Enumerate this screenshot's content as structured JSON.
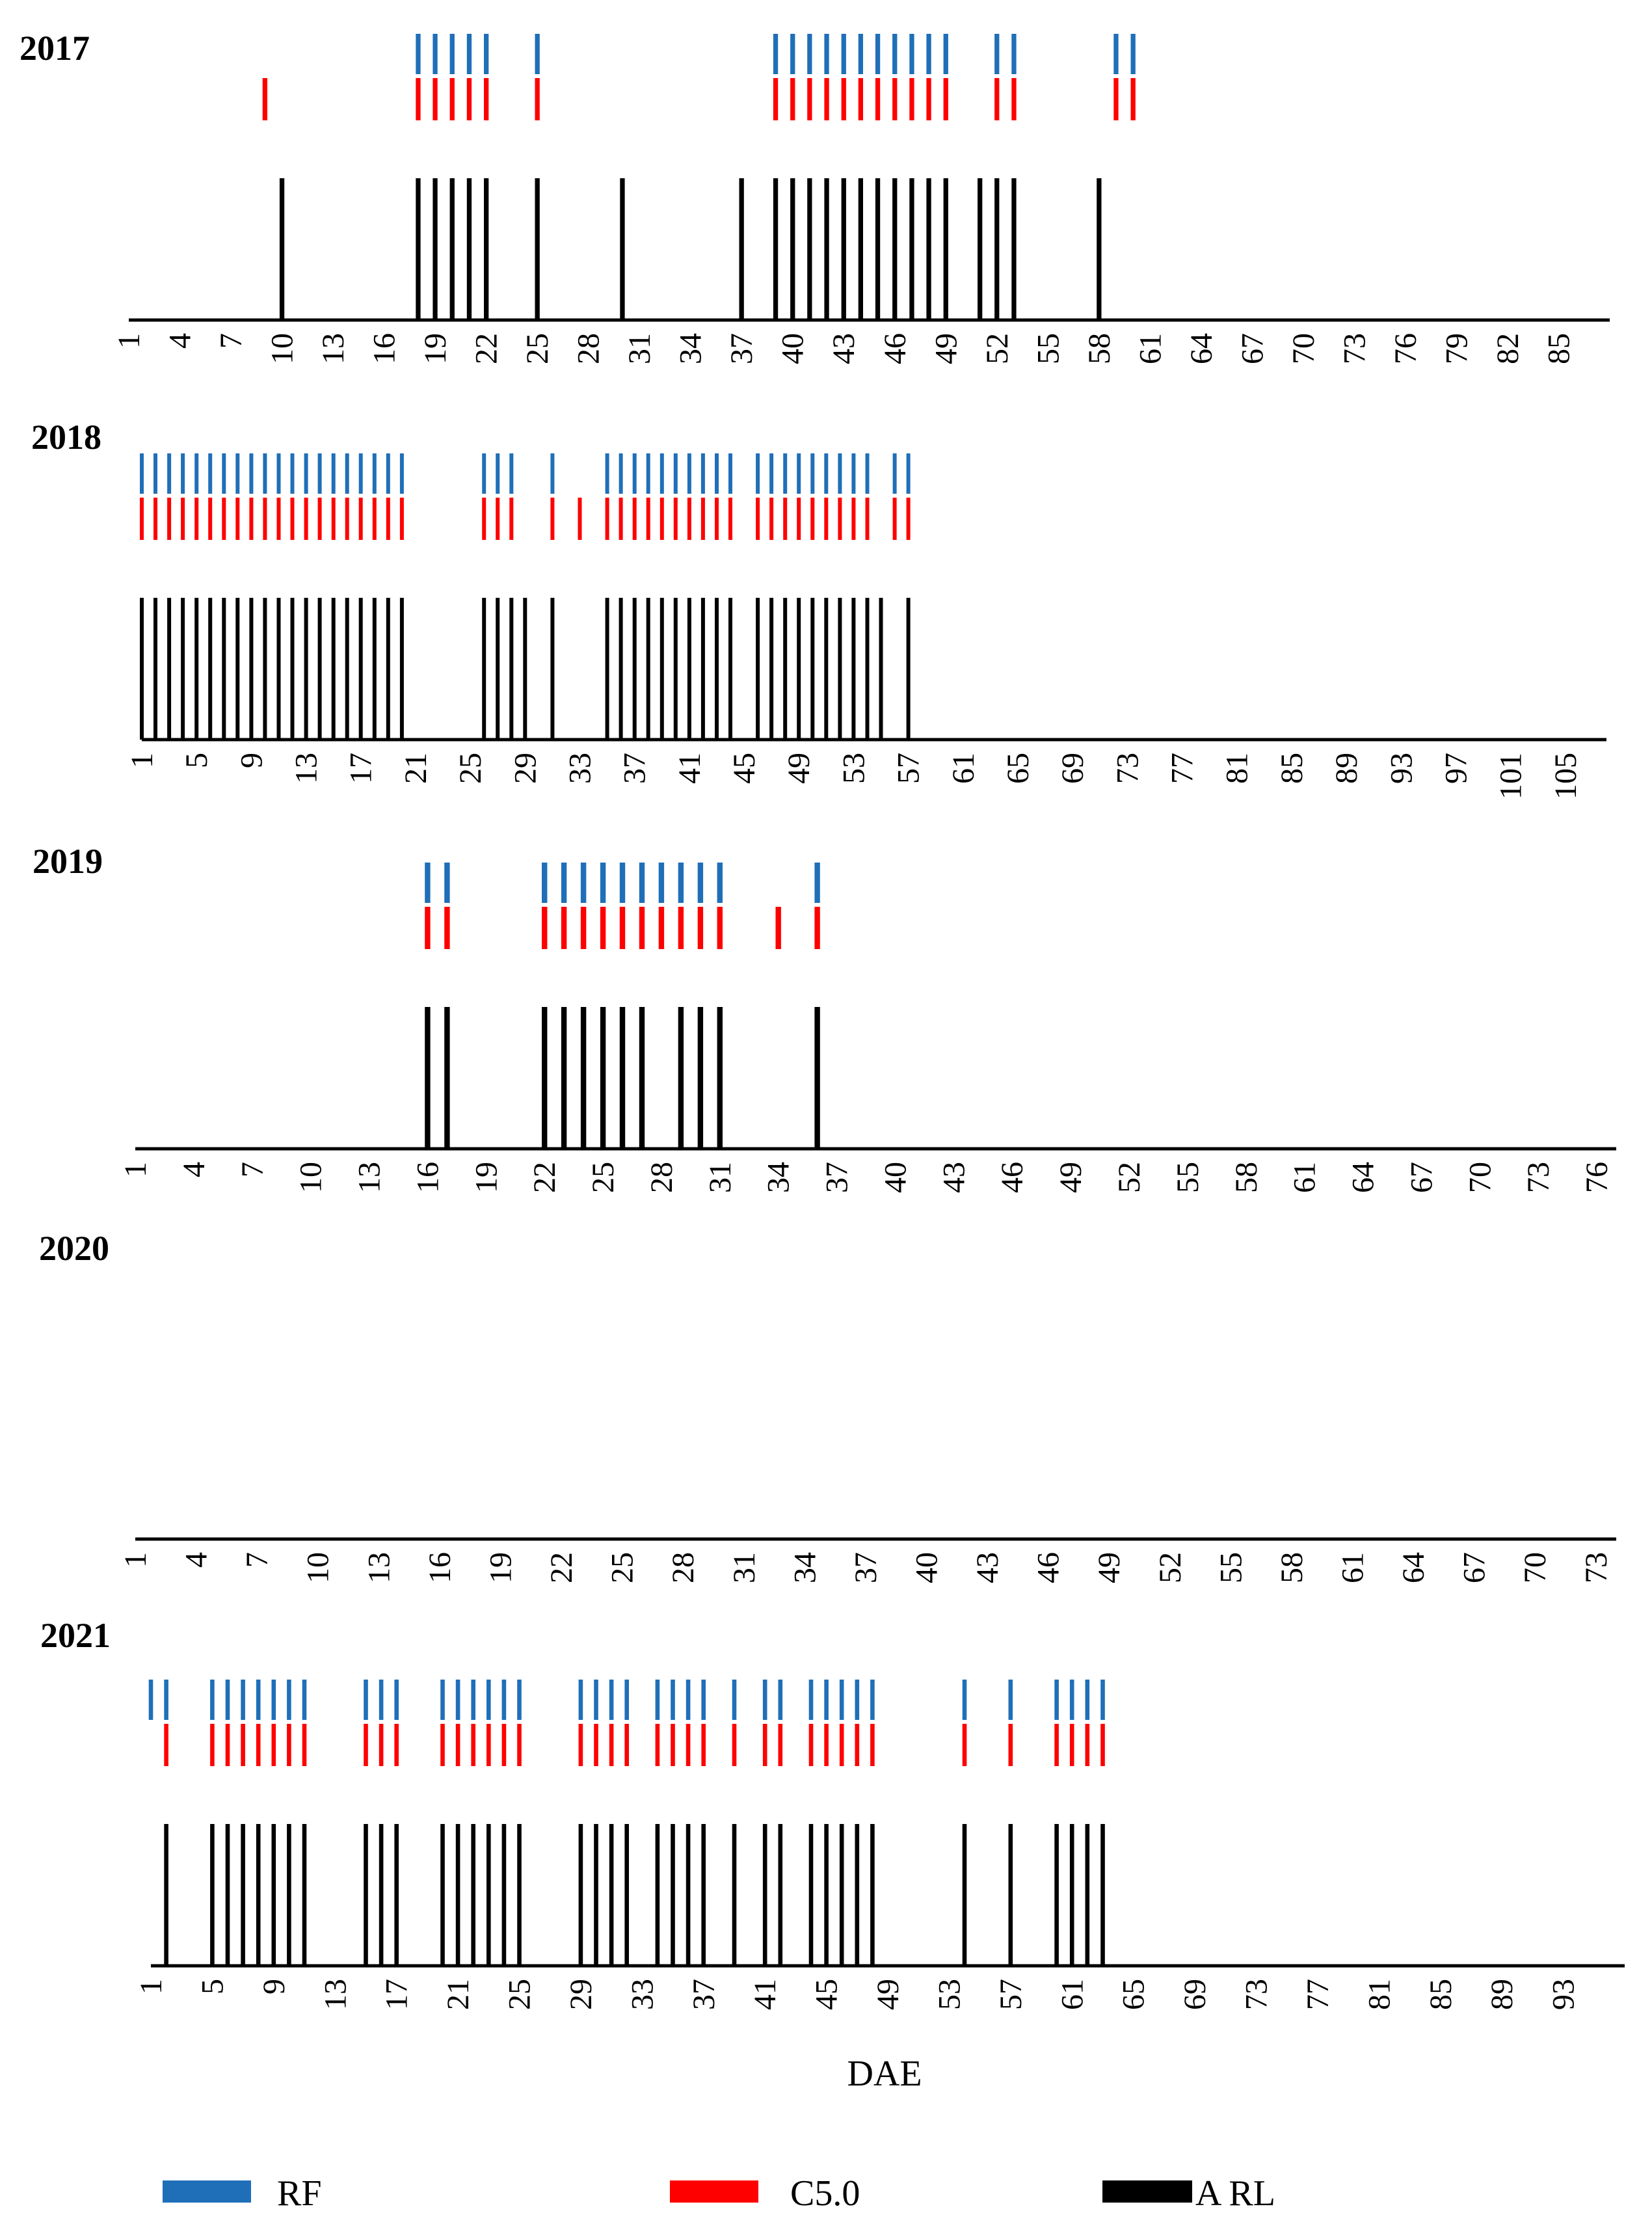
{
  "colors": {
    "rf": "#1F6FB8",
    "c50": "#FF0000",
    "arl": "#000000",
    "axis": "#000000"
  },
  "legend": [
    {
      "key": "rf",
      "label": "RF"
    },
    {
      "key": "c50",
      "label": "C5.0"
    },
    {
      "key": "arl",
      "label": "A RL"
    }
  ],
  "chart_data": [
    {
      "type": "event-raster",
      "title": "2017",
      "xlim": [
        1,
        88
      ],
      "tick_labels": [
        1,
        4,
        7,
        10,
        13,
        16,
        19,
        22,
        25,
        28,
        31,
        34,
        37,
        40,
        43,
        46,
        49,
        52,
        55,
        58,
        61,
        64,
        67,
        70,
        73,
        76,
        79,
        82,
        85
      ],
      "series": [
        {
          "name": "RF",
          "events": [
            18,
            19,
            20,
            21,
            22,
            25,
            39,
            40,
            41,
            42,
            43,
            44,
            45,
            46,
            47,
            48,
            49,
            52,
            53,
            59,
            60
          ]
        },
        {
          "name": "C5.0",
          "events": [
            9,
            18,
            19,
            20,
            21,
            22,
            25,
            39,
            40,
            41,
            42,
            43,
            44,
            45,
            46,
            47,
            48,
            49,
            52,
            53,
            59,
            60
          ]
        },
        {
          "name": "ARL",
          "events": [
            10,
            18,
            19,
            20,
            21,
            22,
            25,
            30,
            37,
            39,
            40,
            41,
            42,
            43,
            44,
            45,
            46,
            47,
            48,
            49,
            51,
            52,
            53,
            58
          ]
        }
      ]
    },
    {
      "type": "event-raster",
      "title": "2018",
      "xlim": [
        1,
        108
      ],
      "tick_labels": [
        1,
        5,
        9,
        13,
        17,
        21,
        25,
        29,
        33,
        37,
        41,
        45,
        49,
        53,
        57,
        61,
        65,
        69,
        73,
        77,
        81,
        85,
        89,
        93,
        97,
        101,
        105
      ],
      "series": [
        {
          "name": "RF",
          "events": [
            1,
            2,
            3,
            4,
            5,
            6,
            7,
            8,
            9,
            10,
            11,
            12,
            13,
            14,
            15,
            16,
            17,
            18,
            19,
            20,
            26,
            27,
            28,
            31,
            35,
            36,
            37,
            38,
            39,
            40,
            41,
            42,
            43,
            44,
            46,
            47,
            48,
            49,
            50,
            51,
            52,
            53,
            54,
            56,
            57
          ]
        },
        {
          "name": "C5.0",
          "events": [
            1,
            2,
            3,
            4,
            5,
            6,
            7,
            8,
            9,
            10,
            11,
            12,
            13,
            14,
            15,
            16,
            17,
            18,
            19,
            20,
            26,
            27,
            28,
            31,
            33,
            35,
            36,
            37,
            38,
            39,
            40,
            41,
            42,
            43,
            44,
            46,
            47,
            48,
            49,
            50,
            51,
            52,
            53,
            54,
            56,
            57
          ]
        },
        {
          "name": "ARL",
          "events": [
            1,
            2,
            3,
            4,
            5,
            6,
            7,
            8,
            9,
            10,
            11,
            12,
            13,
            14,
            15,
            16,
            17,
            18,
            19,
            20,
            26,
            27,
            28,
            29,
            31,
            35,
            36,
            37,
            38,
            39,
            40,
            41,
            42,
            43,
            44,
            46,
            47,
            48,
            49,
            50,
            51,
            52,
            53,
            54,
            55,
            57
          ]
        }
      ]
    },
    {
      "type": "event-raster",
      "title": "2019",
      "xlim": [
        1,
        77
      ],
      "tick_labels": [
        1,
        4,
        7,
        10,
        13,
        16,
        19,
        22,
        25,
        28,
        31,
        34,
        37,
        40,
        43,
        46,
        49,
        52,
        55,
        58,
        61,
        64,
        67,
        70,
        73,
        76
      ],
      "series": [
        {
          "name": "RF",
          "events": [
            16,
            17,
            22,
            23,
            24,
            25,
            26,
            27,
            28,
            29,
            30,
            31,
            36
          ]
        },
        {
          "name": "C5.0",
          "events": [
            16,
            17,
            22,
            23,
            24,
            25,
            26,
            27,
            28,
            29,
            30,
            31,
            34,
            36
          ]
        },
        {
          "name": "ARL",
          "events": [
            16,
            17,
            22,
            23,
            24,
            25,
            26,
            27,
            29,
            30,
            31,
            36
          ]
        }
      ]
    },
    {
      "type": "event-raster",
      "title": "2020",
      "xlim": [
        1,
        74
      ],
      "tick_labels": [
        1,
        4,
        7,
        10,
        13,
        16,
        19,
        22,
        25,
        28,
        31,
        34,
        37,
        40,
        43,
        46,
        49,
        52,
        55,
        58,
        61,
        64,
        67,
        70,
        73
      ],
      "series": [
        {
          "name": "RF",
          "events": []
        },
        {
          "name": "C5.0",
          "events": []
        },
        {
          "name": "ARL",
          "events": []
        }
      ]
    },
    {
      "type": "event-raster",
      "title": "2021",
      "xlim": [
        1,
        97
      ],
      "xlabel": "DAE",
      "tick_labels": [
        1,
        5,
        9,
        13,
        17,
        21,
        25,
        29,
        33,
        37,
        41,
        45,
        49,
        53,
        57,
        61,
        65,
        69,
        73,
        77,
        81,
        85,
        89,
        93
      ],
      "series": [
        {
          "name": "RF",
          "events": [
            1,
            2,
            5,
            6,
            7,
            8,
            9,
            10,
            11,
            15,
            16,
            17,
            20,
            21,
            22,
            23,
            24,
            25,
            29,
            30,
            31,
            32,
            34,
            35,
            36,
            37,
            39,
            41,
            42,
            44,
            45,
            46,
            47,
            48,
            54,
            57,
            60,
            61,
            62,
            63
          ]
        },
        {
          "name": "C5.0",
          "events": [
            2,
            5,
            6,
            7,
            8,
            9,
            10,
            11,
            15,
            16,
            17,
            20,
            21,
            22,
            23,
            24,
            25,
            29,
            30,
            31,
            32,
            34,
            35,
            36,
            37,
            39,
            41,
            42,
            44,
            45,
            46,
            47,
            48,
            54,
            57,
            60,
            61,
            62,
            63
          ]
        },
        {
          "name": "ARL",
          "events": [
            2,
            5,
            6,
            7,
            8,
            9,
            10,
            11,
            15,
            16,
            17,
            20,
            21,
            22,
            23,
            24,
            25,
            29,
            30,
            31,
            32,
            34,
            35,
            36,
            37,
            39,
            41,
            42,
            44,
            45,
            46,
            47,
            48,
            54,
            57,
            60,
            61,
            62,
            63
          ]
        }
      ]
    }
  ]
}
